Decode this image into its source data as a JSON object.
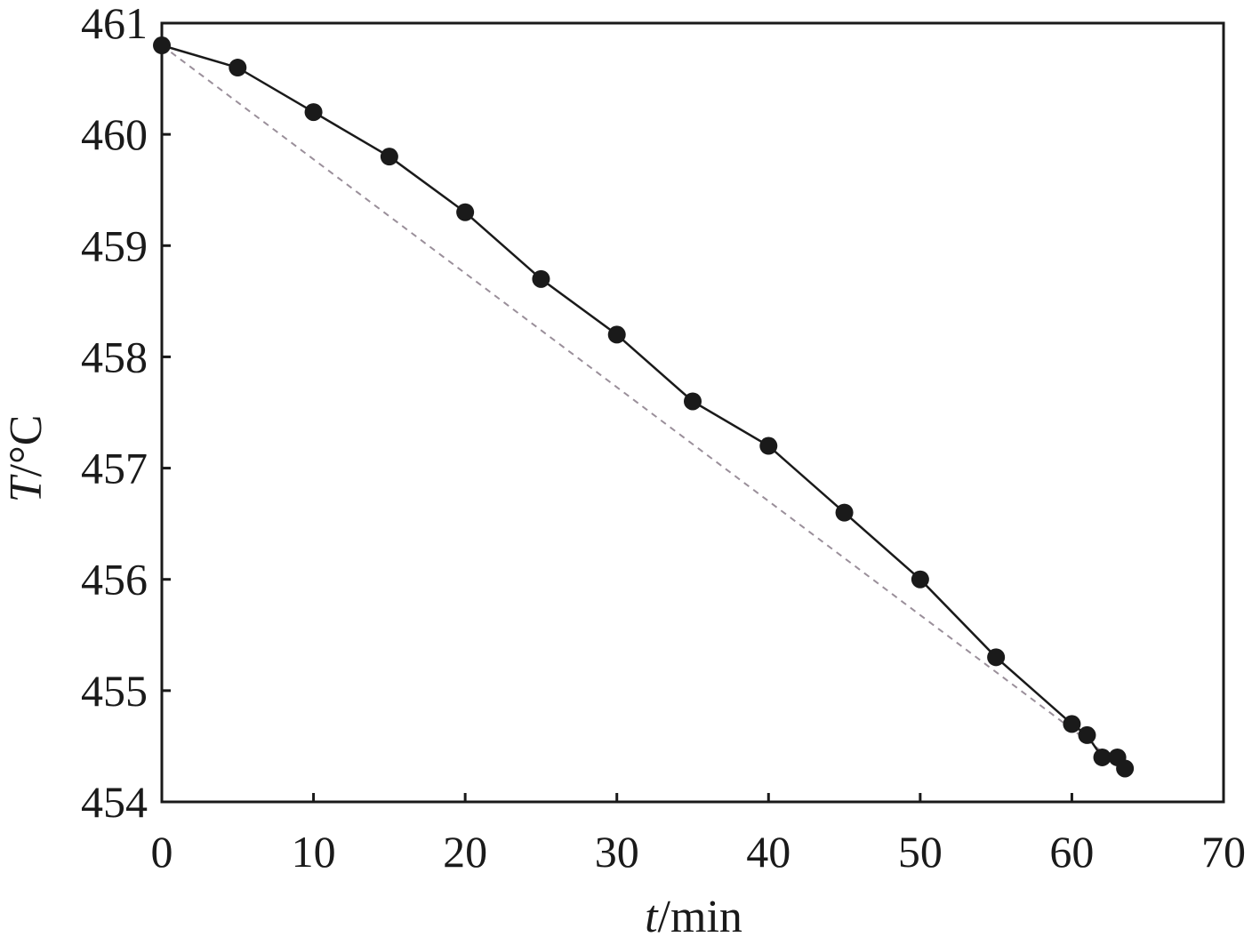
{
  "chart_data": {
    "type": "line",
    "xlabel_var": "t",
    "xlabel_unit": "/min",
    "ylabel_var": "T",
    "ylabel_unit": "/°C",
    "xlim": [
      0,
      70
    ],
    "ylim": [
      454,
      461
    ],
    "xticks": [
      "0",
      "10",
      "20",
      "30",
      "40",
      "50",
      "60",
      "70"
    ],
    "yticks": [
      "454",
      "455",
      "456",
      "457",
      "458",
      "459",
      "460",
      "461"
    ],
    "grid": false,
    "series": [
      {
        "style": "solid line with filled circle markers",
        "color": "#1a1a1a",
        "x": [
          0,
          5,
          10,
          15,
          20,
          25,
          30,
          35,
          40,
          45,
          50,
          55,
          60,
          61,
          62,
          63,
          63.5
        ],
        "y": [
          460.8,
          460.6,
          460.2,
          459.8,
          459.3,
          458.7,
          458.2,
          457.6,
          457.2,
          456.6,
          456.0,
          455.3,
          454.7,
          454.6,
          454.4,
          454.4,
          454.3
        ]
      },
      {
        "style": "dashed line",
        "color": "#9a8f9a",
        "x": [
          0,
          62
        ],
        "y": [
          460.8,
          454.45
        ]
      }
    ]
  }
}
